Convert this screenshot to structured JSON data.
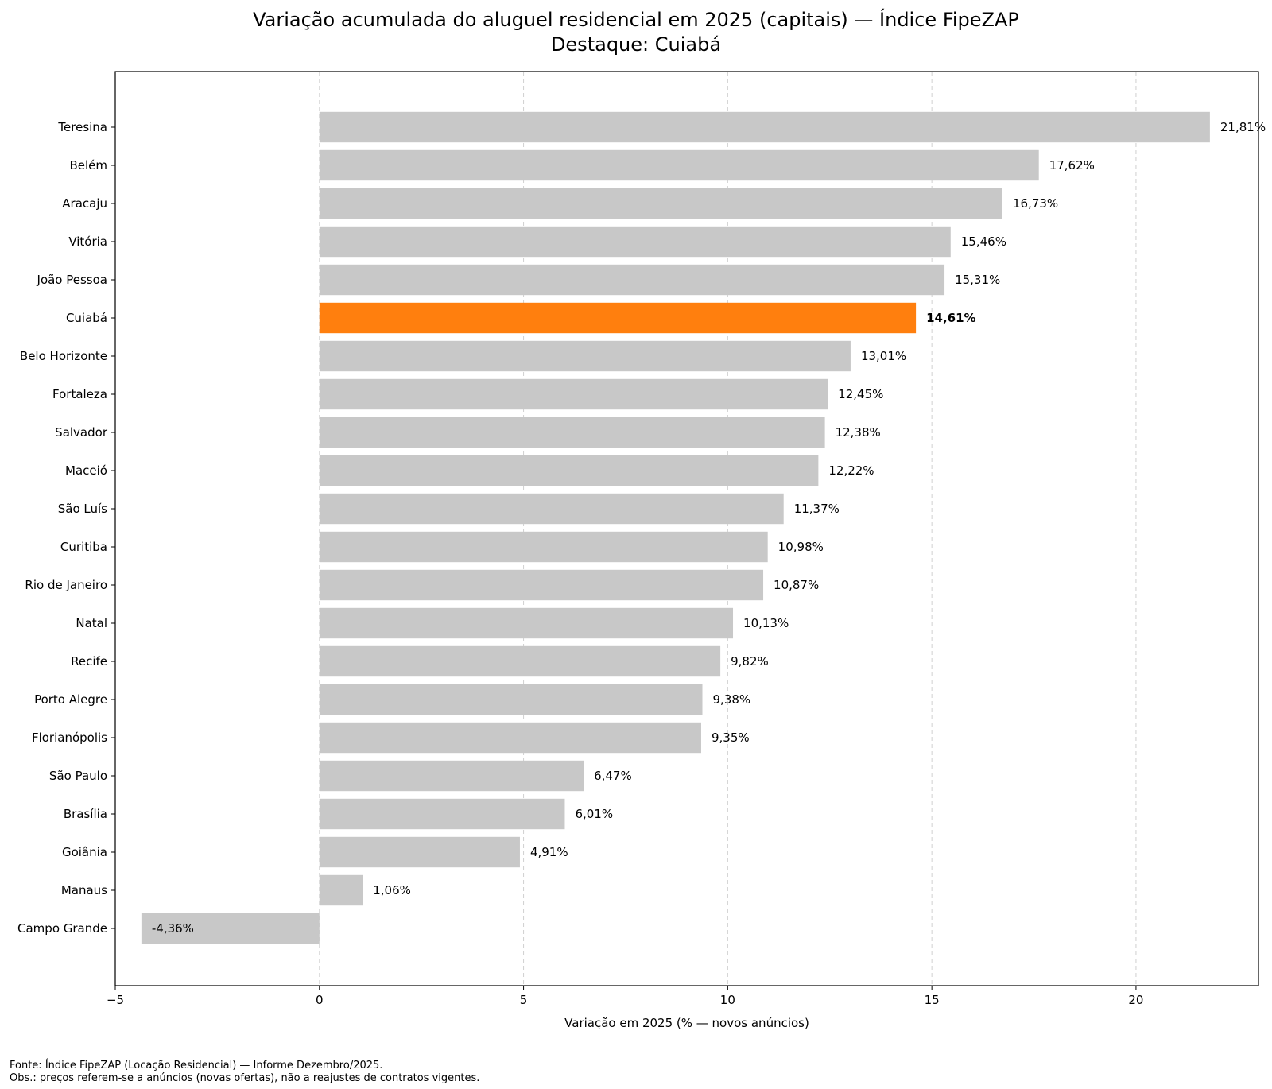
{
  "chart_data": {
    "type": "bar",
    "orientation": "horizontal",
    "title": "Variação acumulada do aluguel residencial em 2025 (capitais) — Índice FipeZAP",
    "subtitle": "Destaque: Cuiabá",
    "xlabel": "Variação em 2025 (% — novos anúncios)",
    "ylabel": "",
    "xlim": [
      -5.0,
      23.0
    ],
    "xticks": [
      -5,
      0,
      5,
      10,
      15,
      20
    ],
    "xtick_labels": [
      "−5",
      "0",
      "5",
      "10",
      "15",
      "20"
    ],
    "grid": "vertical dashed",
    "highlight": "Cuiabá",
    "highlight_color": "#ff7f0e",
    "bar_color": "#c8c8c8",
    "categories": [
      "Teresina",
      "Belém",
      "Aracaju",
      "Vitória",
      "João Pessoa",
      "Cuiabá",
      "Belo Horizonte",
      "Fortaleza",
      "Salvador",
      "Maceió",
      "São Luís",
      "Curitiba",
      "Rio de Janeiro",
      "Natal",
      "Recife",
      "Porto Alegre",
      "Florianópolis",
      "São Paulo",
      "Brasília",
      "Goiânia",
      "Manaus",
      "Campo Grande"
    ],
    "values": [
      21.81,
      17.62,
      16.73,
      15.46,
      15.31,
      14.61,
      13.01,
      12.45,
      12.38,
      12.22,
      11.37,
      10.98,
      10.87,
      10.13,
      9.82,
      9.38,
      9.35,
      6.47,
      6.01,
      4.91,
      1.06,
      -4.36
    ],
    "value_labels": [
      "21,81%",
      "17,62%",
      "16,73%",
      "15,46%",
      "15,31%",
      "14,61%",
      "13,01%",
      "12,45%",
      "12,38%",
      "12,22%",
      "11,37%",
      "10,98%",
      "10,87%",
      "10,13%",
      "9,82%",
      "9,38%",
      "9,35%",
      "6,47%",
      "6,01%",
      "4,91%",
      "1,06%",
      "-4,36%"
    ]
  },
  "footer": {
    "source": "Fonte: Índice FipeZAP (Locação Residencial) — Informe Dezembro/2025.",
    "note": "Obs.: preços referem-se a anúncios (novas ofertas), não a reajustes de contratos vigentes."
  }
}
